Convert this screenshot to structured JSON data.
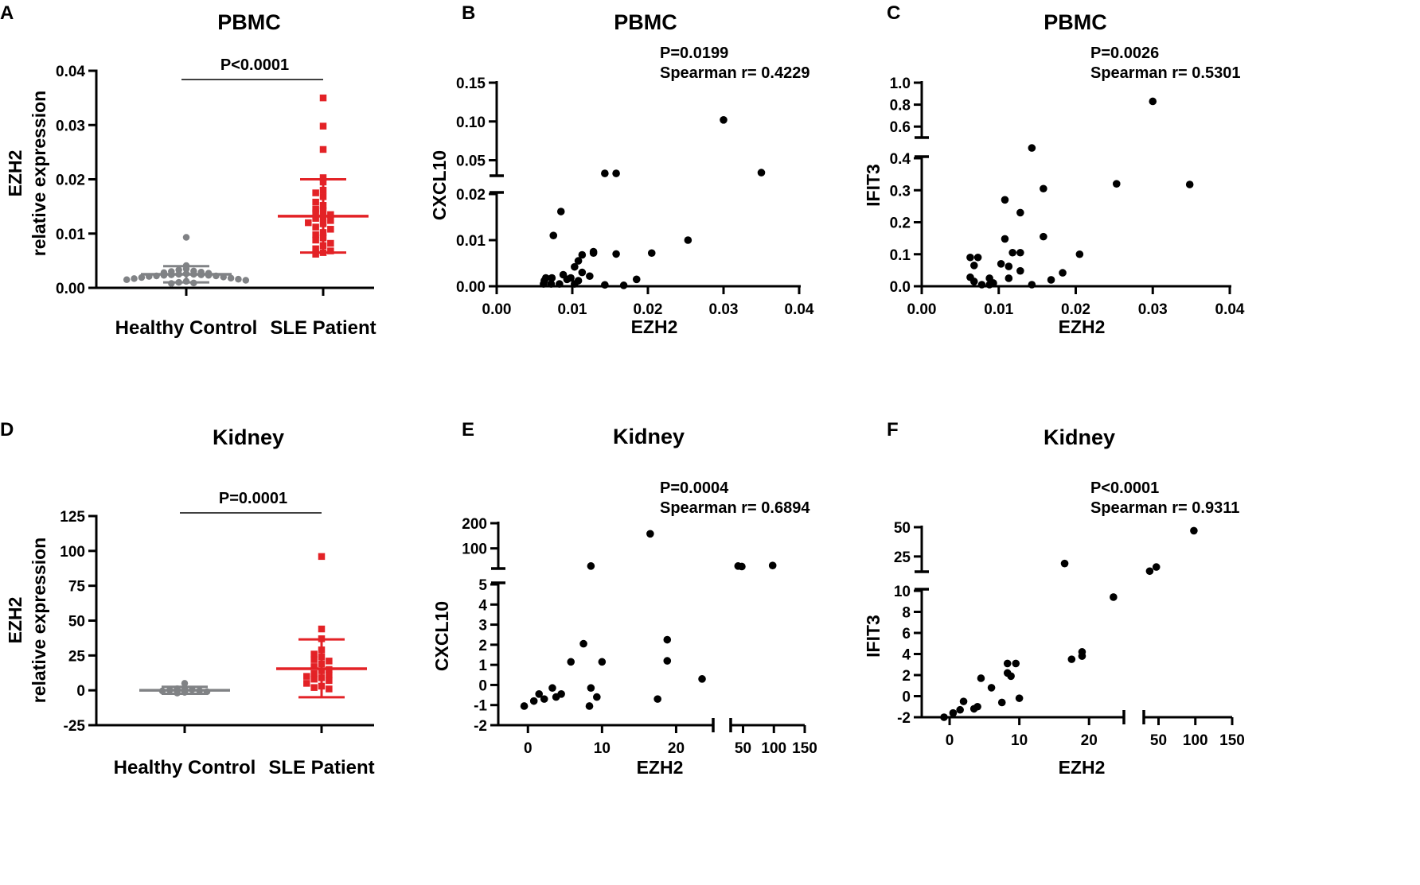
{
  "chart_data": [
    {
      "id": "A",
      "type": "scatter",
      "title": "PBMC",
      "ylabel": [
        "EZH2",
        "relative expression"
      ],
      "categories": [
        "Healthy Control",
        "SLE Patient"
      ],
      "ylim": [
        0,
        0.04
      ],
      "yticks": [
        {
          "v": 0,
          "label": "0.00"
        },
        {
          "v": 0.01,
          "label": "0.01"
        },
        {
          "v": 0.02,
          "label": "0.02"
        },
        {
          "v": 0.03,
          "label": "0.03"
        },
        {
          "v": 0.04,
          "label": "0.04"
        }
      ],
      "pvalue": "P<0.0001",
      "colors": [
        "#808285",
        "#e32226"
      ],
      "series": [
        {
          "name": "Healthy Control",
          "mean": 0.0025,
          "sd_low": 0.001,
          "sd_high": 0.004,
          "values": [
            0.0093,
            0.0041,
            0.0035,
            0.0033,
            0.0031,
            0.003,
            0.0029,
            0.0028,
            0.0027,
            0.0026,
            0.0025,
            0.0025,
            0.0024,
            0.0024,
            0.0023,
            0.0023,
            0.0022,
            0.0022,
            0.0021,
            0.002,
            0.0019,
            0.0018,
            0.0017,
            0.0016,
            0.0015,
            0.0014,
            0.0012,
            0.001,
            0.0009,
            0.0008
          ]
        },
        {
          "name": "SLE Patient",
          "mean": 0.0132,
          "sd_low": 0.0065,
          "sd_high": 0.02,
          "values": [
            0.035,
            0.0298,
            0.0255,
            0.0203,
            0.0195,
            0.018,
            0.0175,
            0.0168,
            0.0158,
            0.0152,
            0.0145,
            0.0142,
            0.0138,
            0.0135,
            0.013,
            0.0128,
            0.0124,
            0.012,
            0.0118,
            0.0112,
            0.0108,
            0.0102,
            0.0098,
            0.0092,
            0.0088,
            0.0082,
            0.0078,
            0.0072,
            0.0068,
            0.0065,
            0.0062
          ]
        }
      ]
    },
    {
      "id": "B",
      "type": "scatter",
      "title": "PBMC",
      "xlabel": "EZH2",
      "ylabel": "CXCL10",
      "xlim": [
        0,
        0.04
      ],
      "xticks": [
        "0.00",
        "0.01",
        "0.02",
        "0.03",
        "0.04"
      ],
      "ylim_lower": [
        0,
        0.02
      ],
      "yticks_lower": [
        "0.00",
        "0.01",
        "0.02"
      ],
      "ylim_upper": [
        0.03,
        0.15
      ],
      "yticks_upper": [
        "0.05",
        "0.10",
        "0.15"
      ],
      "stats": [
        "P=0.0199",
        "Spearman r= 0.4229"
      ],
      "points": [
        [
          0.03,
          0.102
        ],
        [
          0.035,
          0.034
        ],
        [
          0.0143,
          0.033
        ],
        [
          0.0158,
          0.033
        ],
        [
          0.0085,
          0.0162
        ],
        [
          0.0075,
          0.011
        ],
        [
          0.0253,
          0.01
        ],
        [
          0.0205,
          0.0072
        ],
        [
          0.0113,
          0.0068
        ],
        [
          0.0128,
          0.0075
        ],
        [
          0.0128,
          0.0072
        ],
        [
          0.0158,
          0.007
        ],
        [
          0.0108,
          0.0055
        ],
        [
          0.0103,
          0.0042
        ],
        [
          0.0088,
          0.0025
        ],
        [
          0.0113,
          0.003
        ],
        [
          0.0123,
          0.0022
        ],
        [
          0.0065,
          0.0018
        ],
        [
          0.0073,
          0.0018
        ],
        [
          0.0098,
          0.0018
        ],
        [
          0.0093,
          0.0015
        ],
        [
          0.0063,
          0.0012
        ],
        [
          0.0108,
          0.0012
        ],
        [
          0.0185,
          0.0015
        ],
        [
          0.0062,
          0.0005
        ],
        [
          0.0072,
          0.0005
        ],
        [
          0.0083,
          0.0005
        ],
        [
          0.0103,
          0.0005
        ],
        [
          0.0143,
          0.0003
        ],
        [
          0.0168,
          0.0002
        ]
      ]
    },
    {
      "id": "C",
      "type": "scatter",
      "title": "PBMC",
      "xlabel": "EZH2",
      "ylabel": "IFIT3",
      "xlim": [
        0,
        0.04
      ],
      "xticks": [
        "0.00",
        "0.01",
        "0.02",
        "0.03",
        "0.04"
      ],
      "ylim_lower": [
        0,
        0.4
      ],
      "yticks_lower": [
        "0.0",
        "0.1",
        "0.2",
        "0.3",
        "0.4"
      ],
      "ylim_upper": [
        0.5,
        1.0
      ],
      "yticks_upper": [
        "0.6",
        "0.8",
        "1.0"
      ],
      "stats": [
        "P=0.0026",
        "Spearman r= 0.5301"
      ],
      "points": [
        [
          0.03,
          0.83
        ],
        [
          0.0143,
          0.405
        ],
        [
          0.0253,
          0.32
        ],
        [
          0.0348,
          0.318
        ],
        [
          0.0158,
          0.305
        ],
        [
          0.0108,
          0.27
        ],
        [
          0.0128,
          0.23
        ],
        [
          0.0158,
          0.155
        ],
        [
          0.0108,
          0.148
        ],
        [
          0.0118,
          0.105
        ],
        [
          0.0128,
          0.105
        ],
        [
          0.0205,
          0.1
        ],
        [
          0.0063,
          0.09
        ],
        [
          0.0073,
          0.09
        ],
        [
          0.0103,
          0.07
        ],
        [
          0.0113,
          0.062
        ],
        [
          0.0068,
          0.065
        ],
        [
          0.0128,
          0.048
        ],
        [
          0.0183,
          0.042
        ],
        [
          0.0063,
          0.028
        ],
        [
          0.0088,
          0.025
        ],
        [
          0.0113,
          0.025
        ],
        [
          0.0168,
          0.02
        ],
        [
          0.0068,
          0.015
        ],
        [
          0.0093,
          0.01
        ],
        [
          0.0078,
          0.005
        ],
        [
          0.0088,
          0.005
        ],
        [
          0.0143,
          0.005
        ]
      ]
    },
    {
      "id": "D",
      "type": "scatter",
      "title": "Kidney",
      "ylabel": [
        "EZH2",
        "relative expression"
      ],
      "categories": [
        "Healthy Control",
        "SLE Patient"
      ],
      "ylim": [
        -25,
        125
      ],
      "yticks": [
        {
          "v": -25,
          "label": "-25"
        },
        {
          "v": 0,
          "label": "0"
        },
        {
          "v": 25,
          "label": "25"
        },
        {
          "v": 50,
          "label": "50"
        },
        {
          "v": 75,
          "label": "75"
        },
        {
          "v": 100,
          "label": "100"
        },
        {
          "v": 125,
          "label": "125"
        }
      ],
      "pvalue": "P=0.0001",
      "colors": [
        "#808285",
        "#e32226"
      ],
      "series": [
        {
          "name": "Healthy Control",
          "mean": 0,
          "sd_low": -2.5,
          "sd_high": 2.5,
          "values": [
            5,
            1.5,
            1.2,
            0.5,
            0.2,
            -0.2,
            -0.5,
            -1,
            -1.5,
            -2
          ]
        },
        {
          "name": "SLE Patient",
          "mean": 15.5,
          "sd_low": -5,
          "sd_high": 36.5,
          "values": [
            96,
            44,
            37,
            29,
            26,
            24,
            22,
            21,
            19,
            17,
            15,
            14,
            12,
            11,
            10,
            9,
            8,
            7,
            5,
            3,
            2,
            1
          ]
        }
      ]
    },
    {
      "id": "E",
      "type": "scatter",
      "title": "Kidney",
      "xlabel": "EZH2",
      "ylabel": "CXCL10",
      "xlim_lower": [
        -4,
        25
      ],
      "xticks_lower": [
        "0",
        "10",
        "20"
      ],
      "xlim_upper": [
        30,
        150
      ],
      "xticks_upper": [
        "50",
        "100",
        "150"
      ],
      "ylim_lower": [
        -2,
        5
      ],
      "yticks_lower": [
        "-2",
        "-1",
        "0",
        "1",
        "2",
        "3",
        "4",
        "5"
      ],
      "ylim_upper": [
        20,
        200
      ],
      "yticks_upper": [
        "100",
        "200"
      ],
      "stats": [
        "P=0.0004",
        "Spearman r= 0.6894"
      ],
      "points": [
        [
          16.5,
          158
        ],
        [
          8.5,
          30
        ],
        [
          42,
          30
        ],
        [
          48,
          28
        ],
        [
          98,
          32
        ],
        [
          7.5,
          2.05
        ],
        [
          18.8,
          2.25
        ],
        [
          5.8,
          1.15
        ],
        [
          10,
          1.15
        ],
        [
          18.8,
          1.2
        ],
        [
          23.5,
          0.3
        ],
        [
          8.5,
          -0.15
        ],
        [
          3.3,
          -0.15
        ],
        [
          1.5,
          -0.45
        ],
        [
          4.5,
          -0.45
        ],
        [
          9.3,
          -0.6
        ],
        [
          17.5,
          -0.7
        ],
        [
          2.2,
          -0.7
        ],
        [
          3.8,
          -0.6
        ],
        [
          0.8,
          -0.8
        ],
        [
          -0.5,
          -1.05
        ],
        [
          8.3,
          -1.05
        ]
      ]
    },
    {
      "id": "F",
      "type": "scatter",
      "title": "Kidney",
      "xlabel": "EZH2",
      "ylabel": "IFIT3",
      "xlim_lower": [
        -4,
        25
      ],
      "xticks_lower": [
        "0",
        "10",
        "20"
      ],
      "xlim_upper": [
        30,
        150
      ],
      "xticks_upper": [
        "50",
        "100",
        "150"
      ],
      "ylim_lower": [
        -2,
        10
      ],
      "yticks_lower": [
        "-2",
        "0",
        "2",
        "4",
        "6",
        "8",
        "10"
      ],
      "ylim_upper": [
        12,
        50
      ],
      "yticks_upper": [
        "25",
        "50"
      ],
      "stats": [
        "P<0.0001",
        "Spearman r= 0.9311"
      ],
      "points": [
        [
          98,
          47
        ],
        [
          16.5,
          19
        ],
        [
          47,
          16
        ],
        [
          38,
          12.5
        ],
        [
          23.5,
          9.4
        ],
        [
          19,
          4.2
        ],
        [
          17.5,
          3.5
        ],
        [
          19,
          3.8
        ],
        [
          8.3,
          3.1
        ],
        [
          9.5,
          3.1
        ],
        [
          8.3,
          2.2
        ],
        [
          8.8,
          1.9
        ],
        [
          4.5,
          1.7
        ],
        [
          6,
          0.8
        ],
        [
          7.5,
          -0.6
        ],
        [
          10,
          -0.2
        ],
        [
          4,
          -1
        ],
        [
          3.5,
          -1.2
        ],
        [
          2,
          -0.5
        ],
        [
          1.5,
          -1.3
        ],
        [
          0.5,
          -1.6
        ],
        [
          -0.8,
          -2
        ]
      ]
    }
  ]
}
